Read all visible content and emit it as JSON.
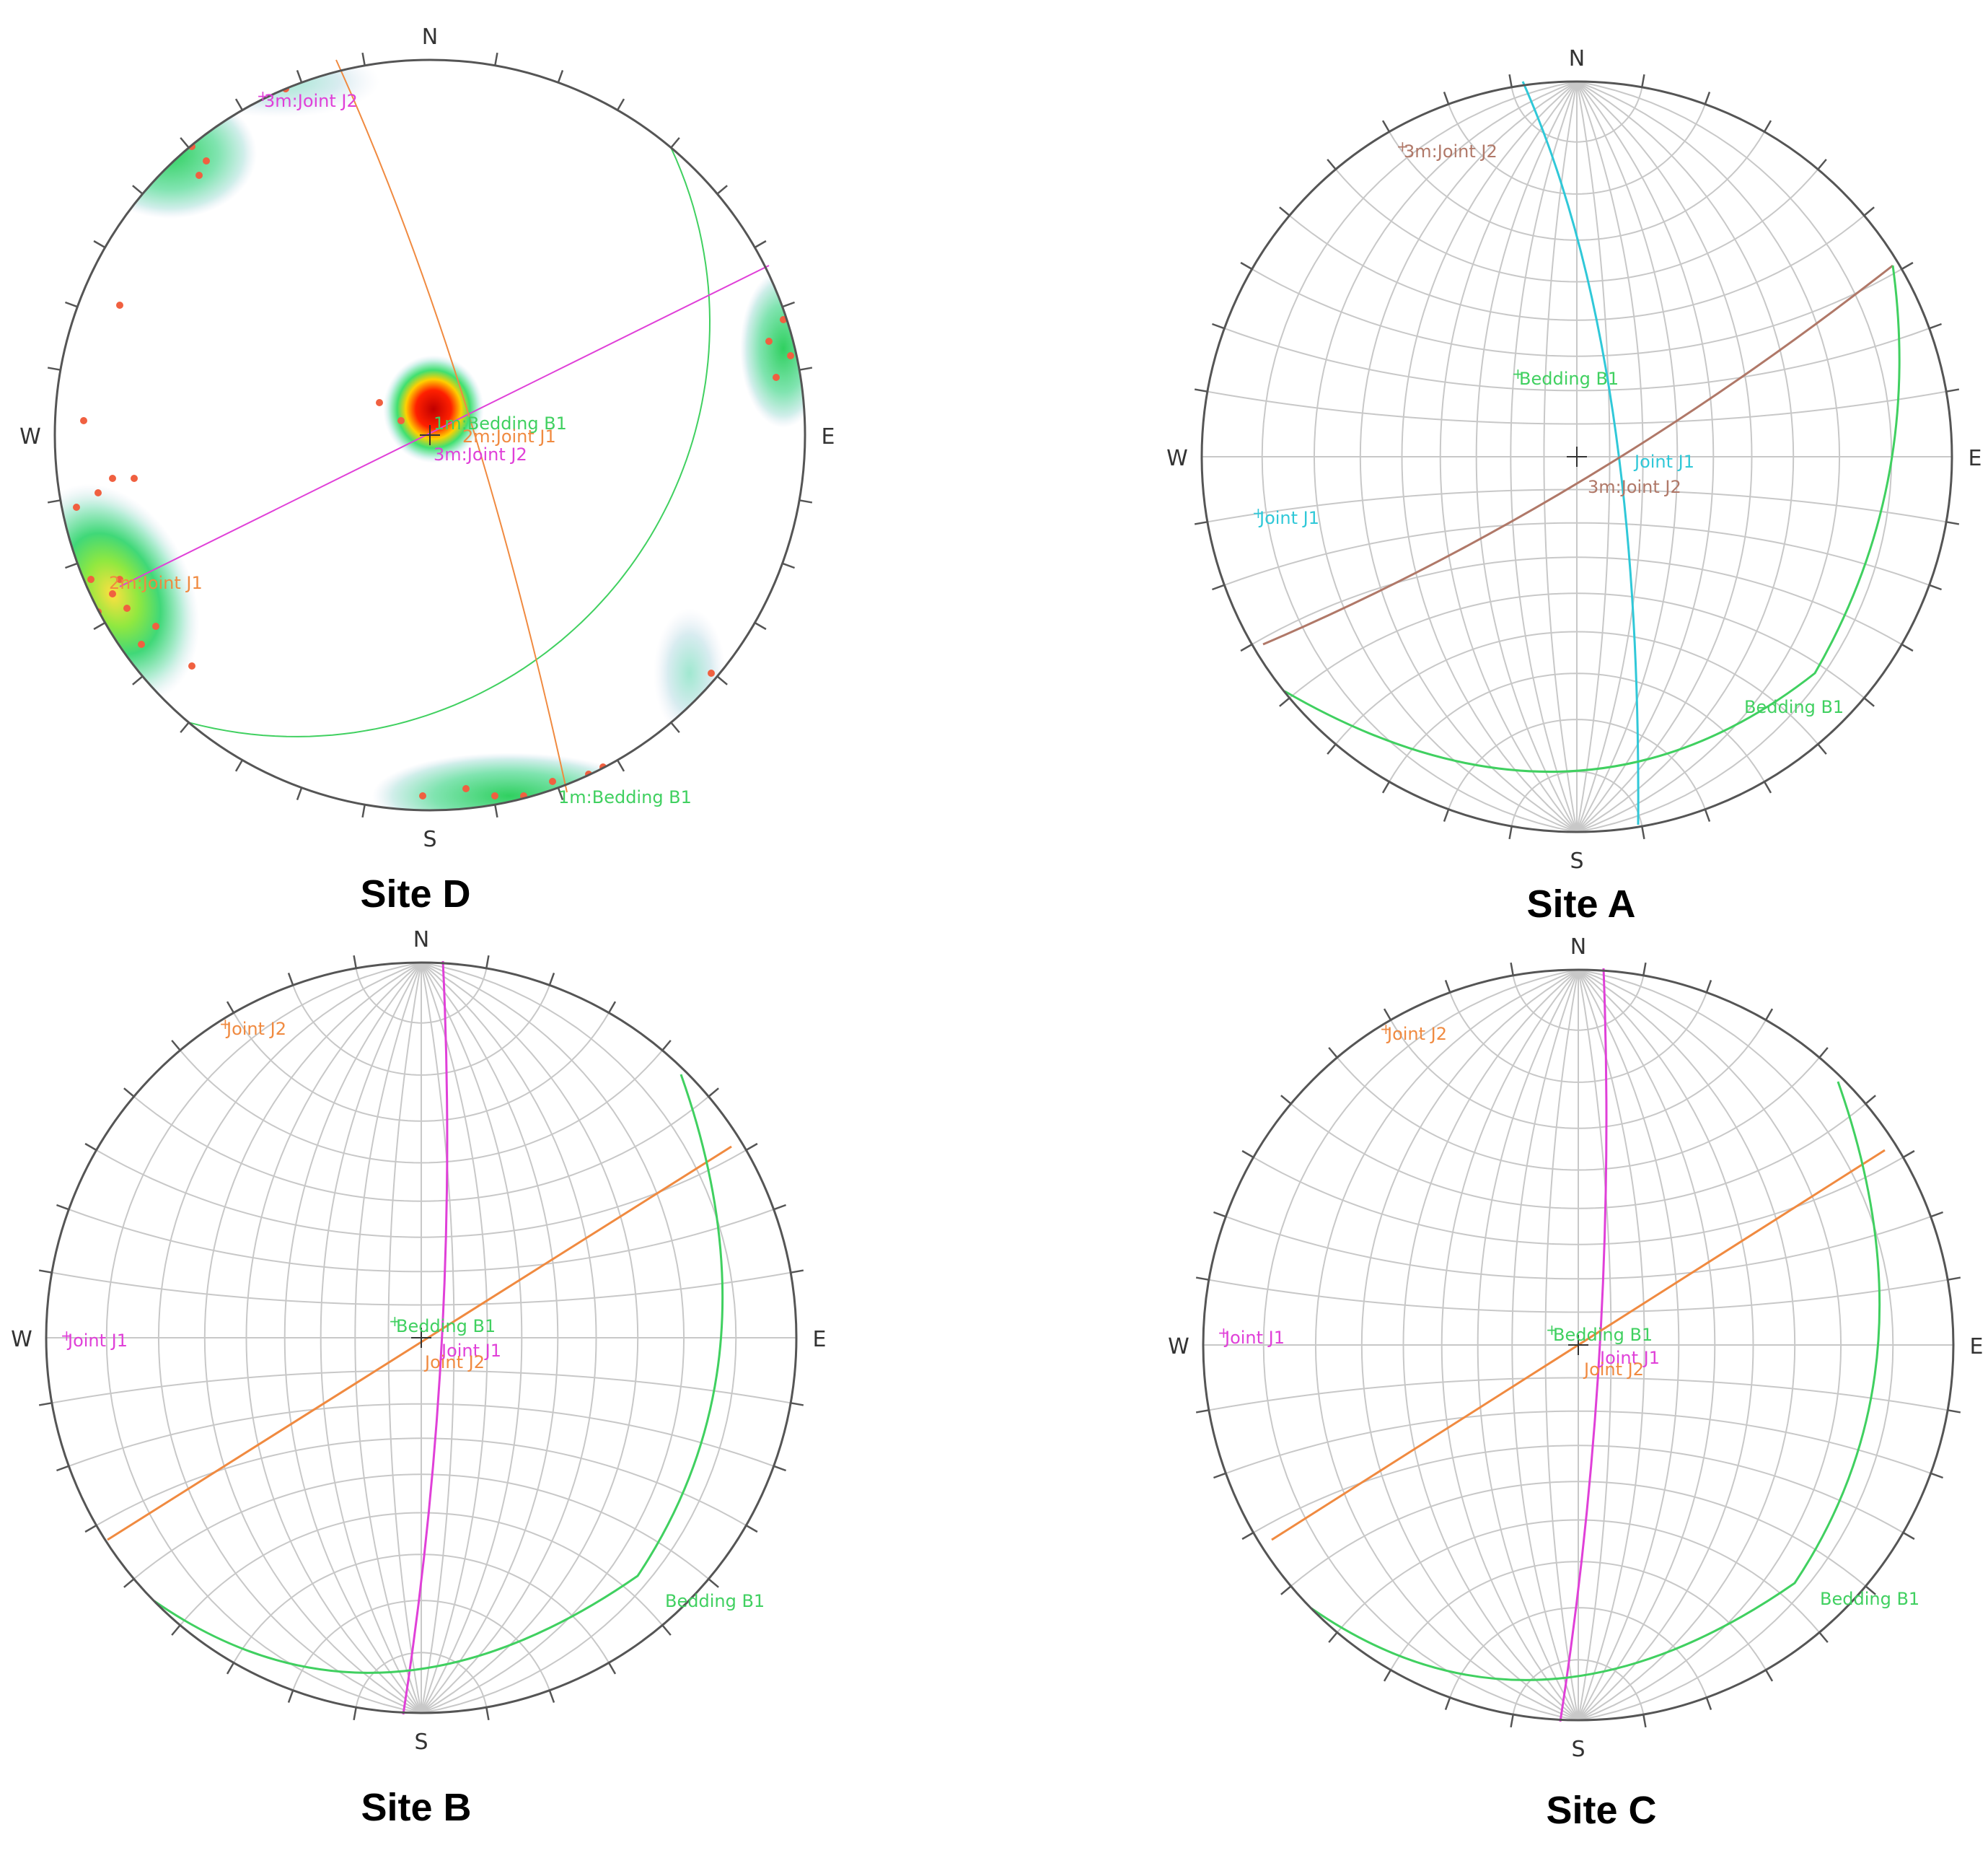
{
  "compass": {
    "north": "N",
    "south": "S",
    "east": "E",
    "west": "W"
  },
  "colors": {
    "net": "#c8c8c8",
    "outline": "#555555",
    "magenta": "#e040d8",
    "orange": "#f08a40",
    "green": "#40d060",
    "cyan": "#30c8d8",
    "brown": "#b07868",
    "pole": "#f06040"
  },
  "panels": [
    {
      "id": "site-d",
      "title": "Site D",
      "type": "density",
      "labels": [
        {
          "text": "3m:Joint J2",
          "color": "magenta"
        },
        {
          "text": "1m:Bedding B1",
          "color": "green"
        },
        {
          "text": "2m:Joint J1",
          "color": "orange"
        },
        {
          "text": "3m:Joint J2",
          "color": "magenta"
        },
        {
          "text": "2m:Joint J1",
          "color": "orange"
        },
        {
          "text": "1m:Bedding B1",
          "color": "green"
        }
      ]
    },
    {
      "id": "site-a",
      "title": "Site A",
      "type": "net",
      "labels": [
        {
          "text": "3m:Joint J2",
          "color": "brown"
        },
        {
          "text": "Bedding B1",
          "color": "green"
        },
        {
          "text": "Joint J1",
          "color": "cyan"
        },
        {
          "text": "3m:Joint J2",
          "color": "brown"
        },
        {
          "text": "Joint J1",
          "color": "cyan"
        },
        {
          "text": "Bedding B1",
          "color": "green"
        }
      ]
    },
    {
      "id": "site-b",
      "title": "Site B",
      "type": "net",
      "labels": [
        {
          "text": "Joint J2",
          "color": "orange"
        },
        {
          "text": "Joint J1",
          "color": "magenta"
        },
        {
          "text": "Bedding B1",
          "color": "green"
        },
        {
          "text": "Joint J1",
          "color": "magenta"
        },
        {
          "text": "Joint J2",
          "color": "orange"
        },
        {
          "text": "Bedding B1",
          "color": "green"
        }
      ]
    },
    {
      "id": "site-c",
      "title": "Site C",
      "type": "net",
      "labels": [
        {
          "text": "Joint J2",
          "color": "orange"
        },
        {
          "text": "Joint J1",
          "color": "magenta"
        },
        {
          "text": "Bedding B1",
          "color": "green"
        },
        {
          "text": "Joint J1",
          "color": "magenta"
        },
        {
          "text": "Joint J2",
          "color": "orange"
        },
        {
          "text": "Bedding B1",
          "color": "green"
        }
      ]
    }
  ]
}
